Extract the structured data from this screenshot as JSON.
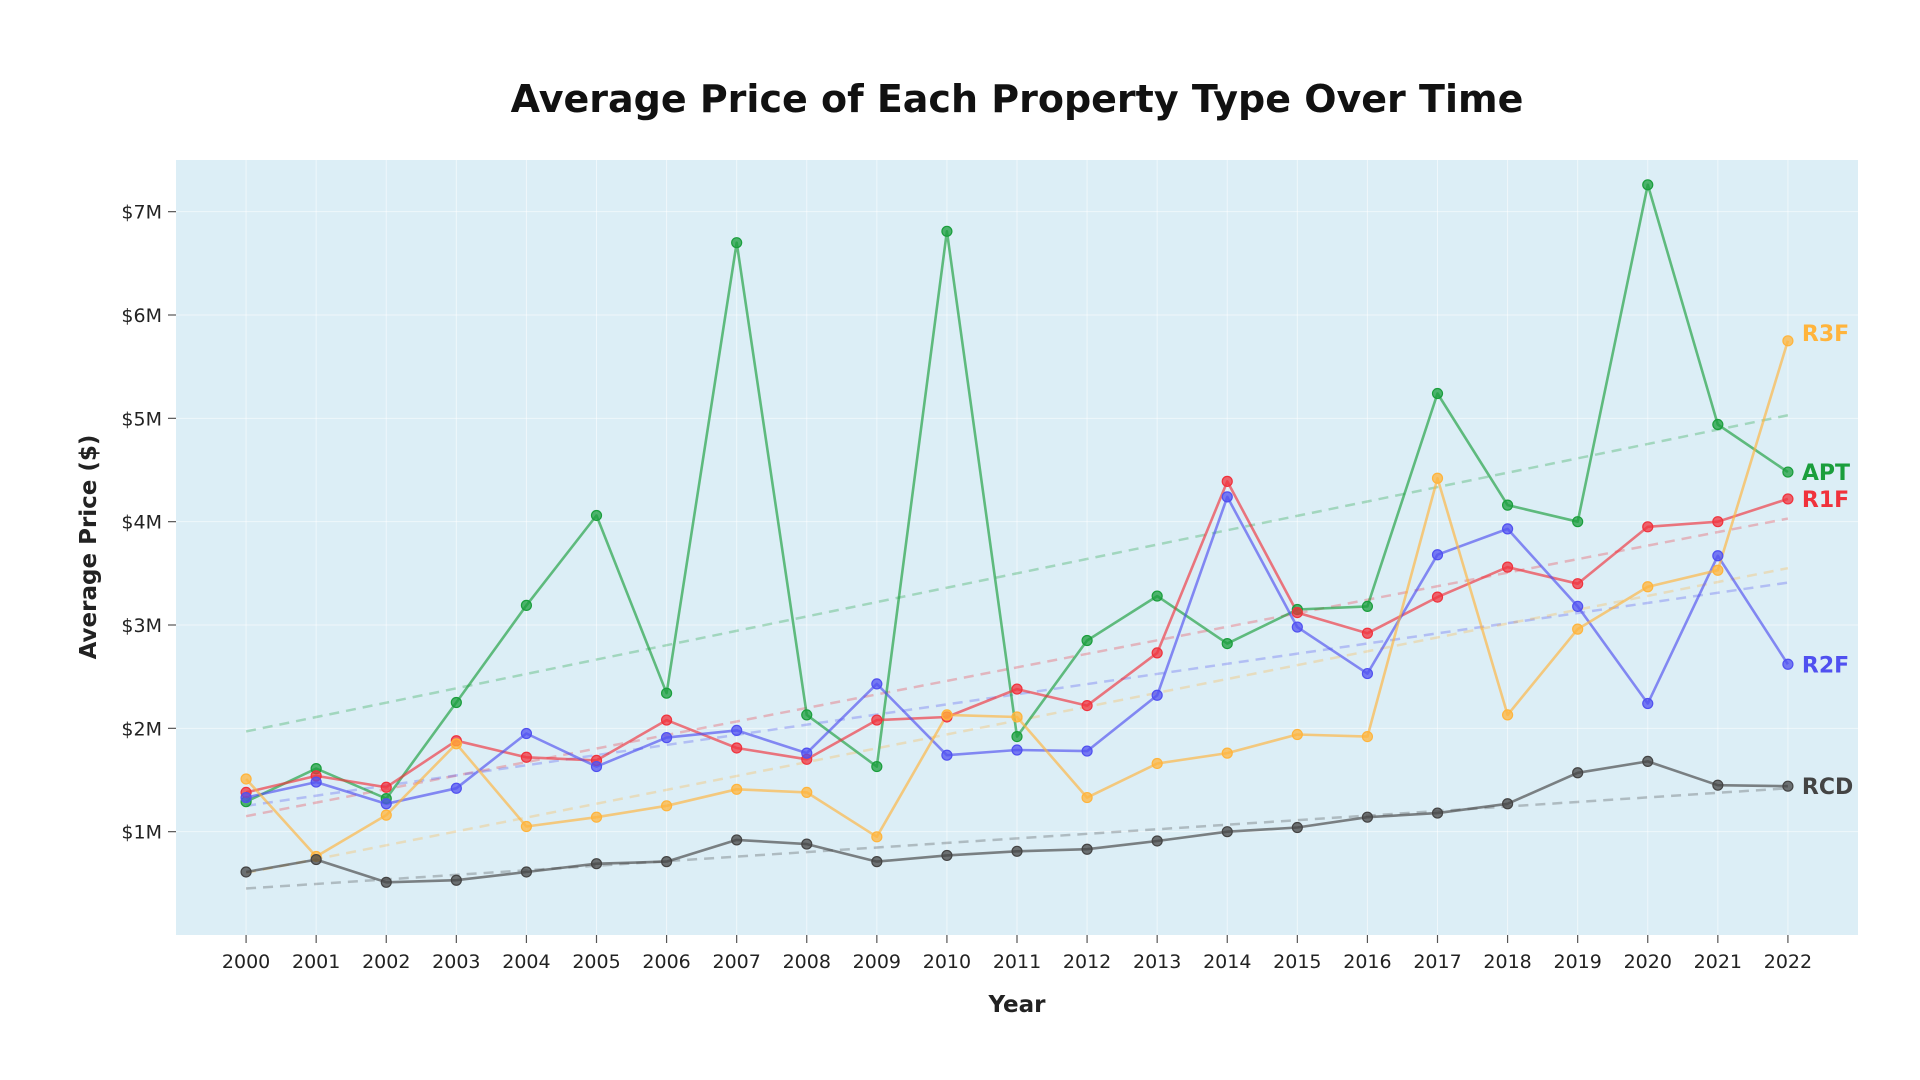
{
  "chart_data": {
    "type": "line",
    "title": "Average Price of Each Property Type Over Time",
    "xlabel": "Year",
    "ylabel": "Average Price ($)",
    "x": [
      2000,
      2001,
      2002,
      2003,
      2004,
      2005,
      2006,
      2007,
      2008,
      2009,
      2010,
      2011,
      2012,
      2013,
      2014,
      2015,
      2016,
      2017,
      2018,
      2019,
      2020,
      2021,
      2022
    ],
    "x_tick_labels": [
      "2000",
      "2001",
      "2002",
      "2003",
      "2004",
      "2005",
      "2006",
      "2007",
      "2008",
      "2009",
      "2010",
      "2011",
      "2012",
      "2013",
      "2014",
      "2015",
      "2016",
      "2017",
      "2018",
      "2019",
      "2020",
      "2021",
      "2022"
    ],
    "xlim": [
      1999,
      2023
    ],
    "ylim": [
      0,
      7.5
    ],
    "y_unit": "millions of dollars",
    "y_ticks": [
      1,
      2,
      3,
      4,
      5,
      6,
      7
    ],
    "y_tick_labels": [
      "$1M",
      "$2M",
      "$3M",
      "$4M",
      "$5M",
      "$6M",
      "$7M"
    ],
    "grid": true,
    "plot_background": "#dceef6",
    "legend": "labels at line ends",
    "series": [
      {
        "name": "APT",
        "color": "#1a9e3c",
        "values": [
          1.29,
          1.61,
          1.32,
          2.25,
          3.19,
          4.06,
          2.34,
          6.7,
          2.13,
          1.63,
          6.81,
          1.92,
          2.85,
          3.28,
          2.82,
          3.15,
          3.18,
          5.24,
          4.16,
          4.0,
          7.26,
          4.94,
          4.48
        ],
        "trend": [
          1.97,
          5.03
        ]
      },
      {
        "name": "R1F",
        "color": "#f0323c",
        "values": [
          1.38,
          1.54,
          1.43,
          1.88,
          1.72,
          1.69,
          2.08,
          1.81,
          1.7,
          2.08,
          2.11,
          2.38,
          2.22,
          2.73,
          4.39,
          3.12,
          2.92,
          3.27,
          3.56,
          3.4,
          3.95,
          4.0,
          4.22
        ],
        "trend": [
          1.15,
          4.03
        ]
      },
      {
        "name": "R2F",
        "color": "#5050f0",
        "values": [
          1.33,
          1.48,
          1.27,
          1.42,
          1.95,
          1.63,
          1.91,
          1.98,
          1.76,
          2.43,
          1.74,
          1.79,
          1.78,
          2.32,
          4.24,
          2.98,
          2.53,
          3.68,
          3.93,
          3.18,
          2.24,
          3.67,
          2.62
        ],
        "trend": [
          1.25,
          3.41
        ]
      },
      {
        "name": "R3F",
        "color": "#ffb43c",
        "values": [
          1.51,
          0.76,
          1.16,
          1.85,
          1.05,
          1.14,
          1.25,
          1.41,
          1.38,
          0.95,
          2.13,
          2.11,
          1.33,
          1.66,
          1.76,
          1.94,
          1.92,
          4.42,
          2.13,
          2.96,
          3.37,
          3.53,
          5.75
        ],
        "trend": [
          0.6,
          3.55
        ]
      },
      {
        "name": "RCD",
        "color": "#444444",
        "values": [
          0.61,
          0.73,
          0.51,
          0.53,
          0.61,
          0.69,
          0.71,
          0.92,
          0.88,
          0.71,
          0.77,
          0.81,
          0.83,
          0.91,
          1.0,
          1.04,
          1.14,
          1.18,
          1.27,
          1.57,
          1.68,
          1.45,
          1.44
        ],
        "trend": [
          0.45,
          1.42
        ]
      }
    ]
  }
}
